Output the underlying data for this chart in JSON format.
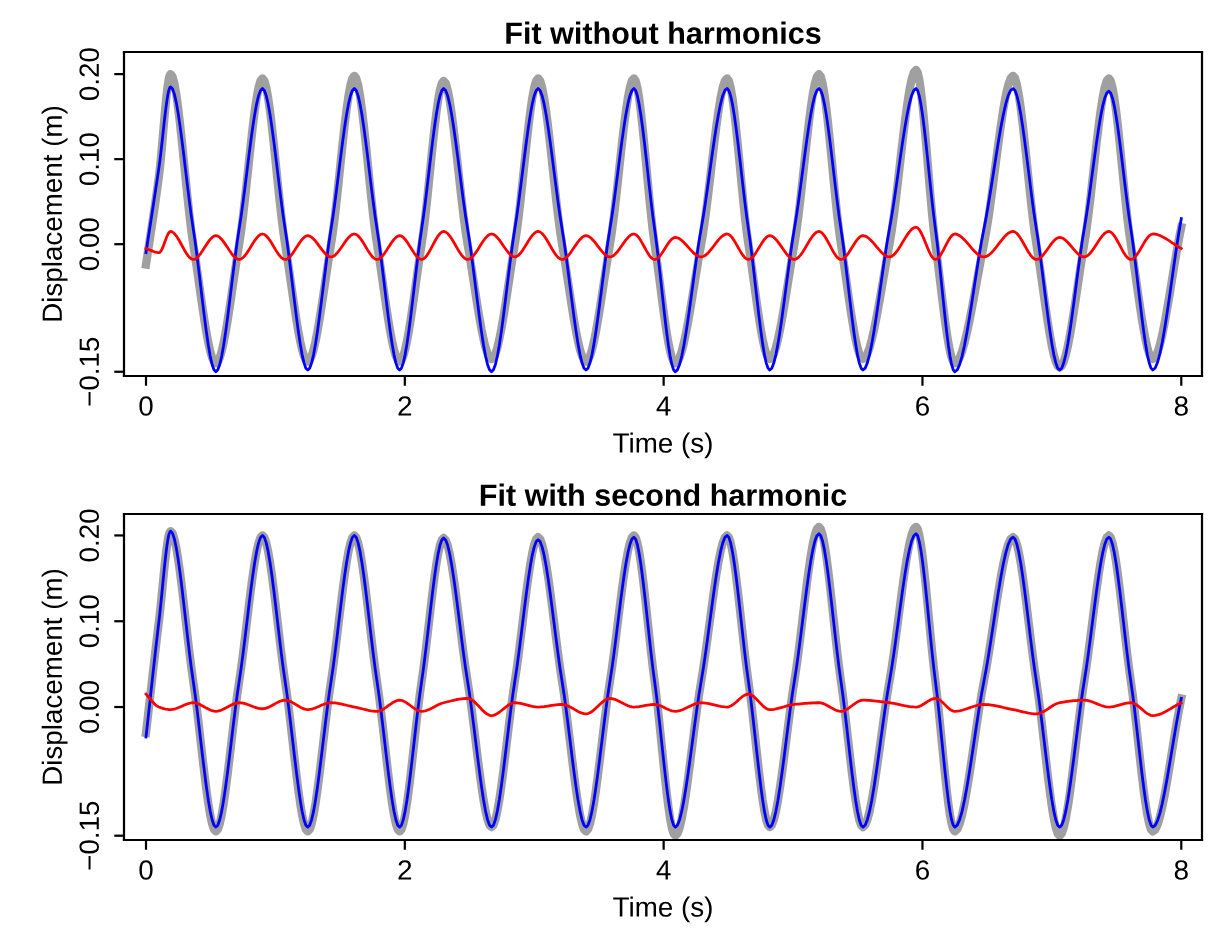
{
  "chart_data": [
    {
      "type": "line",
      "title": "Fit without harmonics",
      "xlabel": "Time (s)",
      "ylabel": "Displacement (m)",
      "x": [
        0,
        0.1,
        0.19,
        0.365,
        0.54,
        0.72,
        0.9,
        1.075,
        1.25,
        1.43,
        1.61,
        1.785,
        1.96,
        2.13,
        2.3,
        2.485,
        2.67,
        2.85,
        3.03,
        3.215,
        3.4,
        3.585,
        3.77,
        3.93,
        4.09,
        4.29,
        4.49,
        4.655,
        4.82,
        5.01,
        5.2,
        5.37,
        5.54,
        5.745,
        5.95,
        6.1,
        6.25,
        6.475,
        6.7,
        6.88,
        7.06,
        7.25,
        7.44,
        7.61,
        7.78,
        8.0
      ],
      "series": [
        {
          "color": "#a0a0a0",
          "values": [
            -0.024,
            0.08,
            0.2,
            0.0,
            -0.14,
            0.0,
            0.195,
            0.0,
            -0.138,
            0.0,
            0.198,
            0.0,
            -0.138,
            0.0,
            0.192,
            0.0,
            -0.135,
            0.0,
            0.195,
            0.0,
            -0.138,
            0.0,
            0.195,
            0.0,
            -0.14,
            0.0,
            0.195,
            0.0,
            -0.135,
            0.0,
            0.2,
            0.0,
            -0.135,
            0.0,
            0.205,
            0.0,
            -0.14,
            0.0,
            0.198,
            0.0,
            -0.145,
            0.0,
            0.195,
            0.0,
            -0.135,
            0.02
          ]
        },
        {
          "color": "#0000ff",
          "values": [
            -0.01,
            0.09,
            0.185,
            0.018,
            -0.15,
            0.018,
            0.183,
            0.018,
            -0.148,
            0.018,
            0.183,
            0.018,
            -0.148,
            0.018,
            0.183,
            0.018,
            -0.15,
            0.018,
            0.183,
            0.018,
            -0.148,
            0.018,
            0.183,
            0.018,
            -0.15,
            0.018,
            0.183,
            0.018,
            -0.148,
            0.018,
            0.183,
            0.018,
            -0.148,
            0.018,
            0.183,
            0.018,
            -0.15,
            0.018,
            0.183,
            0.018,
            -0.148,
            0.018,
            0.18,
            0.018,
            -0.148,
            0.03
          ]
        },
        {
          "color": "#ff0000",
          "values": [
            -0.005,
            -0.01,
            0.015,
            -0.018,
            0.01,
            -0.018,
            0.012,
            -0.018,
            0.01,
            -0.015,
            0.012,
            -0.018,
            0.01,
            -0.018,
            0.015,
            -0.018,
            0.012,
            -0.015,
            0.015,
            -0.018,
            0.01,
            -0.015,
            0.012,
            -0.018,
            0.008,
            -0.015,
            0.012,
            -0.018,
            0.01,
            -0.018,
            0.015,
            -0.018,
            0.01,
            -0.015,
            0.02,
            -0.018,
            0.012,
            -0.015,
            0.015,
            -0.018,
            0.008,
            -0.015,
            0.015,
            -0.018,
            0.012,
            -0.005
          ]
        }
      ],
      "xlim": [
        -0.17,
        8.16
      ],
      "ylim": [
        -0.155,
        0.226
      ],
      "xticks": [
        0,
        2,
        4,
        6,
        8
      ],
      "yticks": [
        {
          "value": -0.15,
          "label": "−0.15"
        },
        {
          "value": 0,
          "label": "0.00"
        },
        {
          "value": 0.1,
          "label": "0.10"
        },
        {
          "value": 0.2,
          "label": "0.20"
        }
      ]
    },
    {
      "type": "line",
      "title": "Fit with second harmonic",
      "xlabel": "Time (s)",
      "ylabel": "Displacement (m)",
      "x": [
        0,
        0.1,
        0.19,
        0.365,
        0.54,
        0.72,
        0.9,
        1.075,
        1.25,
        1.43,
        1.61,
        1.785,
        1.96,
        2.13,
        2.3,
        2.485,
        2.67,
        2.85,
        3.03,
        3.215,
        3.4,
        3.585,
        3.77,
        3.93,
        4.09,
        4.29,
        4.49,
        4.655,
        4.82,
        5.01,
        5.2,
        5.37,
        5.54,
        5.745,
        5.95,
        6.1,
        6.25,
        6.475,
        6.7,
        6.88,
        7.06,
        7.25,
        7.44,
        7.61,
        7.78,
        8.0
      ],
      "series": [
        {
          "color": "#a0a0a0",
          "values": [
            -0.03,
            0.1,
            0.205,
            0.03,
            -0.145,
            0.03,
            0.2,
            0.03,
            -0.145,
            0.03,
            0.2,
            0.03,
            -0.145,
            0.03,
            0.197,
            0.03,
            -0.14,
            0.03,
            0.198,
            0.03,
            -0.145,
            0.03,
            0.2,
            0.03,
            -0.15,
            0.03,
            0.2,
            0.03,
            -0.14,
            0.03,
            0.21,
            0.03,
            -0.14,
            0.03,
            0.21,
            0.03,
            -0.145,
            0.03,
            0.198,
            0.03,
            -0.15,
            0.03,
            0.2,
            0.03,
            -0.145,
            0.01
          ]
        },
        {
          "color": "#0000ff",
          "values": [
            -0.035,
            0.1,
            0.205,
            0.03,
            -0.14,
            0.03,
            0.2,
            0.03,
            -0.14,
            0.03,
            0.2,
            0.03,
            -0.14,
            0.03,
            0.197,
            0.03,
            -0.14,
            0.03,
            0.195,
            0.03,
            -0.14,
            0.03,
            0.198,
            0.03,
            -0.14,
            0.03,
            0.2,
            0.03,
            -0.14,
            0.03,
            0.202,
            0.03,
            -0.14,
            0.03,
            0.202,
            0.03,
            -0.14,
            0.03,
            0.198,
            0.03,
            -0.14,
            0.03,
            0.198,
            0.03,
            -0.14,
            0.01
          ]
        },
        {
          "color": "#ff0000",
          "values": [
            0.015,
            0.0,
            -0.003,
            0.005,
            -0.005,
            0.005,
            -0.002,
            0.008,
            -0.003,
            0.005,
            0.0,
            -0.005,
            0.008,
            -0.005,
            0.005,
            0.01,
            -0.01,
            0.005,
            0.0,
            0.003,
            -0.008,
            0.01,
            0.0,
            0.003,
            -0.005,
            0.005,
            0.0,
            0.015,
            -0.003,
            0.003,
            0.005,
            -0.005,
            0.008,
            0.005,
            0.0,
            0.01,
            -0.005,
            0.003,
            -0.003,
            -0.008,
            0.005,
            0.008,
            0.0,
            0.005,
            -0.01,
            0.005
          ]
        }
      ],
      "xlim": [
        -0.17,
        8.16
      ],
      "ylim": [
        -0.155,
        0.225
      ],
      "xticks": [
        0,
        2,
        4,
        6,
        8
      ],
      "yticks": [
        {
          "value": -0.15,
          "label": "−0.15"
        },
        {
          "value": 0,
          "label": "0.00"
        },
        {
          "value": 0.1,
          "label": "0.10"
        },
        {
          "value": 0.2,
          "label": "0.20"
        }
      ]
    }
  ]
}
